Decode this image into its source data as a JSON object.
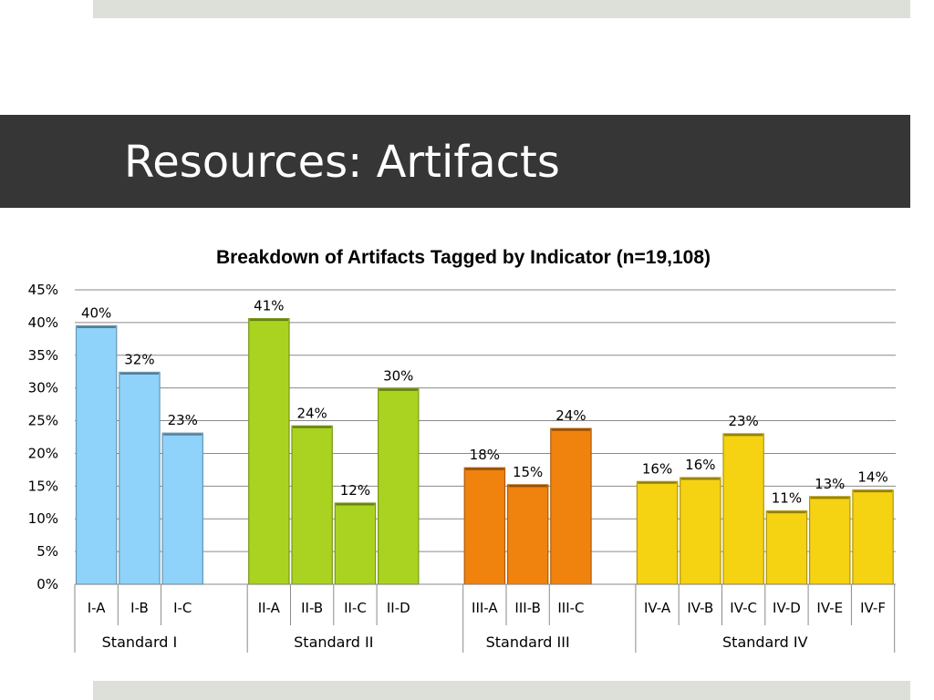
{
  "slide": {
    "title": "Resources: Artifacts"
  },
  "chart_data": {
    "type": "bar",
    "title": "Breakdown of Artifacts Tagged by Indicator (n=19,108)",
    "xlabel": "",
    "ylabel": "",
    "ylim": [
      0,
      45
    ],
    "y_ticks": [
      "0%",
      "5%",
      "10%",
      "15%",
      "20%",
      "25%",
      "30%",
      "35%",
      "40%",
      "45%"
    ],
    "grid": true,
    "legend": "none",
    "groups": [
      {
        "name": "Standard I",
        "color": "#8fd2fa",
        "bars": [
          {
            "category": "I-A",
            "value": 39.5,
            "label": "40%"
          },
          {
            "category": "I-B",
            "value": 32.4,
            "label": "32%"
          },
          {
            "category": "I-C",
            "value": 23.1,
            "label": "23%"
          }
        ]
      },
      {
        "name": "Standard II",
        "color": "#aad321",
        "bars": [
          {
            "category": "II-A",
            "value": 40.6,
            "label": "41%"
          },
          {
            "category": "II-B",
            "value": 24.2,
            "label": "24%"
          },
          {
            "category": "II-C",
            "value": 12.4,
            "label": "12%"
          },
          {
            "category": "II-D",
            "value": 29.9,
            "label": "30%"
          }
        ]
      },
      {
        "name": "Standard III",
        "color": "#f0820e",
        "bars": [
          {
            "category": "III-A",
            "value": 17.8,
            "label": "18%"
          },
          {
            "category": "III-B",
            "value": 15.2,
            "label": "15%"
          },
          {
            "category": "III-C",
            "value": 23.8,
            "label": "24%"
          }
        ]
      },
      {
        "name": "Standard IV",
        "color": "#f5d212",
        "bars": [
          {
            "category": "IV-A",
            "value": 15.7,
            "label": "16%"
          },
          {
            "category": "IV-B",
            "value": 16.3,
            "label": "16%"
          },
          {
            "category": "IV-C",
            "value": 23.0,
            "label": "23%"
          },
          {
            "category": "IV-D",
            "value": 11.2,
            "label": "11%"
          },
          {
            "category": "IV-E",
            "value": 13.4,
            "label": "13%"
          },
          {
            "category": "IV-F",
            "value": 14.4,
            "label": "14%"
          }
        ]
      }
    ]
  }
}
